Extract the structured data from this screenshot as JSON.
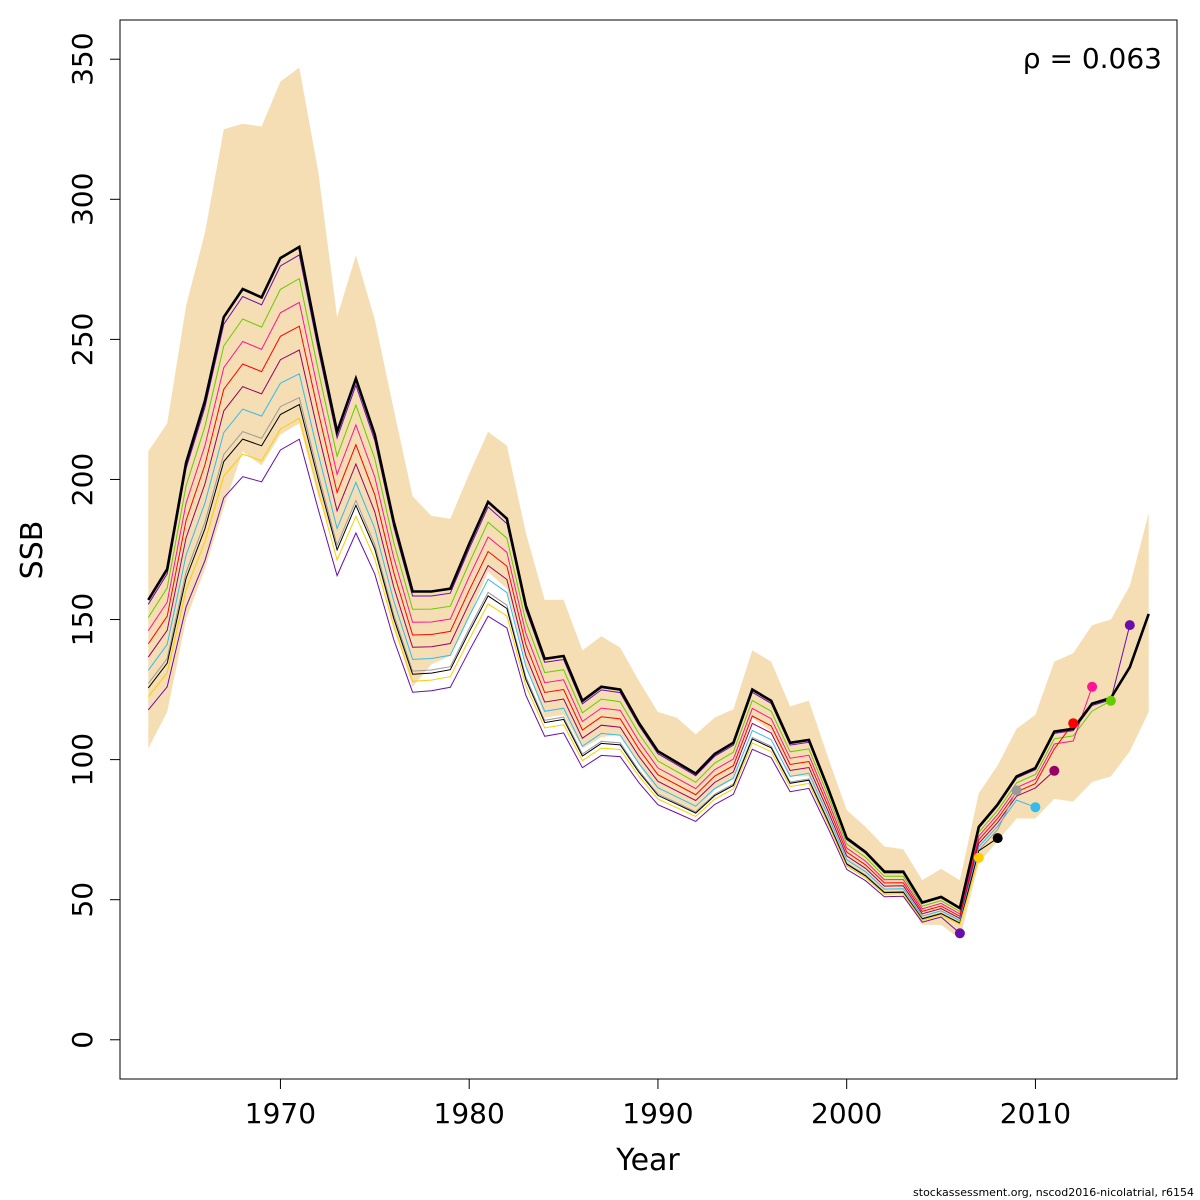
{
  "chart_data": {
    "type": "line",
    "title": "",
    "xlabel": "Year",
    "ylabel": "SSB",
    "xlim": [
      1961.5,
      2017.5
    ],
    "ylim": [
      -14,
      364
    ],
    "x_ticks": [
      1970,
      1980,
      1990,
      2000,
      2010
    ],
    "y_ticks": [
      0,
      50,
      100,
      150,
      200,
      250,
      300,
      350
    ],
    "x_tick_labels": [
      "1970",
      "1980",
      "1990",
      "2000",
      "2010"
    ],
    "y_tick_labels": [
      "0",
      "50",
      "100",
      "150",
      "200",
      "250",
      "300",
      "350"
    ],
    "annotation": "ρ = 0.063",
    "footer": "stockassessment.org, nscod2016-nicolatrial, r6154",
    "grid": false,
    "legend": "none",
    "band": {
      "color": "#f5deb3",
      "x": [
        1963,
        1964,
        1965,
        1966,
        1967,
        1968,
        1969,
        1970,
        1971,
        1972,
        1973,
        1974,
        1975,
        1976,
        1977,
        1978,
        1979,
        1980,
        1981,
        1982,
        1983,
        1984,
        1985,
        1986,
        1987,
        1988,
        1989,
        1990,
        1991,
        1992,
        1993,
        1994,
        1995,
        1996,
        1997,
        1998,
        1999,
        2000,
        2001,
        2002,
        2003,
        2004,
        2005,
        2006,
        2007,
        2008,
        2009,
        2010,
        2011,
        2012,
        2013,
        2014,
        2015,
        2016
      ],
      "upper": [
        210,
        220,
        262,
        288,
        325,
        327,
        326,
        342,
        347,
        310,
        258,
        280,
        257,
        225,
        194,
        187,
        186,
        202,
        217,
        212,
        181,
        157,
        157,
        139,
        144,
        140,
        128,
        117,
        115,
        109,
        115,
        118,
        139,
        135,
        119,
        121,
        101,
        82,
        76,
        69,
        68,
        57,
        61,
        57,
        88,
        98,
        111,
        116,
        135,
        138,
        148,
        150,
        162,
        188
      ],
      "lower": [
        104,
        117,
        150,
        168,
        190,
        210,
        205,
        216,
        220,
        194,
        176,
        193,
        174,
        148,
        126,
        134,
        137,
        151,
        167,
        161,
        134,
        115,
        116,
        104,
        108,
        109,
        98,
        88,
        84,
        81,
        89,
        93,
        115,
        110,
        94,
        94,
        78,
        62,
        58,
        52,
        52,
        41,
        41,
        36,
        63,
        71,
        79,
        79,
        86,
        85,
        92,
        94,
        103,
        117
      ]
    },
    "main_series": {
      "name": "",
      "color": "#000000",
      "x": [
        1963,
        1964,
        1965,
        1966,
        1967,
        1968,
        1969,
        1970,
        1971,
        1972,
        1973,
        1974,
        1975,
        1976,
        1977,
        1978,
        1979,
        1980,
        1981,
        1982,
        1983,
        1984,
        1985,
        1986,
        1987,
        1988,
        1989,
        1990,
        1991,
        1992,
        1993,
        1994,
        1995,
        1996,
        1997,
        1998,
        1999,
        2000,
        2001,
        2002,
        2003,
        2004,
        2005,
        2006,
        2007,
        2008,
        2009,
        2010,
        2011,
        2012,
        2013,
        2014,
        2015,
        2016
      ],
      "y": [
        157,
        168,
        206,
        228,
        258,
        268,
        265,
        279,
        283,
        249,
        217,
        236,
        216,
        185,
        160,
        160,
        161,
        177,
        192,
        186,
        155,
        136,
        137,
        121,
        126,
        125,
        113,
        103,
        99,
        95,
        102,
        106,
        125,
        121,
        106,
        107,
        90,
        72,
        67,
        60,
        60,
        49,
        51,
        47,
        76,
        84,
        94,
        97,
        110,
        111,
        120,
        122,
        133,
        152
      ]
    },
    "peels": [
      {
        "end_year": 2015,
        "color": "#6a0dad",
        "end_value": 148,
        "offset": -1
      },
      {
        "end_year": 2014,
        "color": "#66cc00",
        "end_value": 121,
        "offset": -4
      },
      {
        "end_year": 2013,
        "color": "#ff1493",
        "end_value": 126,
        "offset": -7
      },
      {
        "end_year": 2012,
        "color": "#ff0000",
        "end_value": 113,
        "offset": -10
      },
      {
        "end_year": 2011,
        "color": "#990066",
        "end_value": 96,
        "offset": -13
      },
      {
        "end_year": 2010,
        "color": "#33bbee",
        "end_value": 83,
        "offset": -16
      },
      {
        "end_year": 2009,
        "color": "#999999",
        "end_value": 89,
        "offset": -19
      },
      {
        "end_year": 2008,
        "color": "#000000",
        "end_value": 72,
        "offset": -20
      },
      {
        "end_year": 2007,
        "color": "#ffcc00",
        "end_value": 65,
        "offset": -22
      },
      {
        "end_year": 2006,
        "color": "#6a0dad",
        "end_value": 38,
        "offset": -25
      }
    ]
  }
}
